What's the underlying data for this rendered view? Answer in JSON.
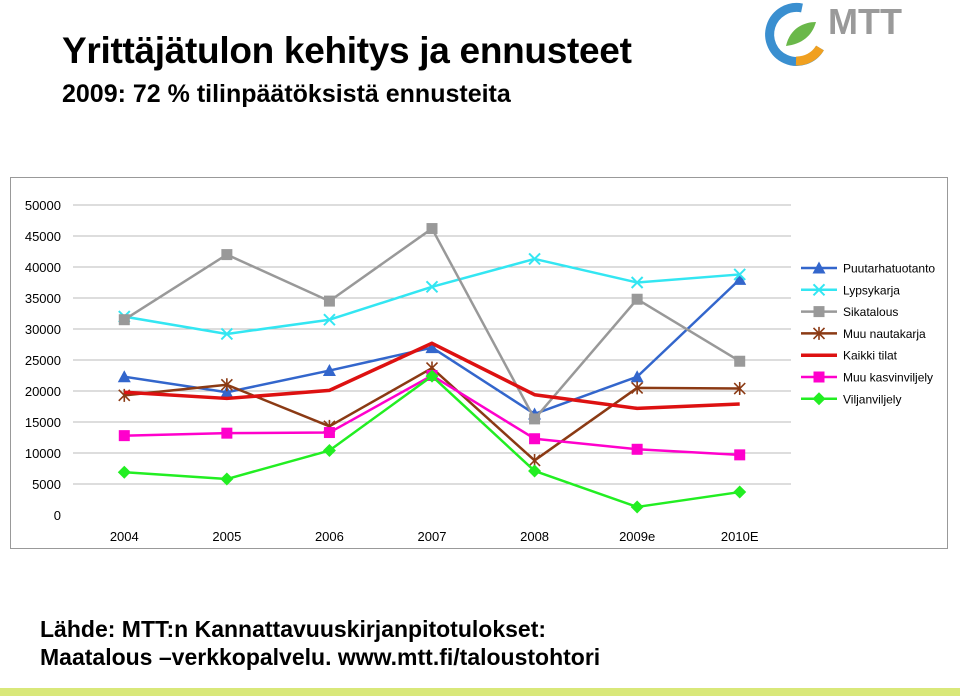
{
  "header": {
    "title": "Yrittäjätulon kehitys ja ennusteet",
    "subtitle": "2009: 72 % tilinpäätöksistä ennusteita"
  },
  "logo": {
    "text": "MTT",
    "colors": [
      "#3a8fd0",
      "#f0a020",
      "#6ab84a",
      "#9a9a9a"
    ]
  },
  "source": {
    "line1": "Lähde: MTT:n Kannattavuuskirjanpitotulokset:",
    "line2": "Maatalous –verkkopalvelu. www.mtt.fi/taloustohtori"
  },
  "chart_data": {
    "type": "line",
    "categories": [
      "2004",
      "2005",
      "2006",
      "2007",
      "2008",
      "2009e",
      "2010E"
    ],
    "ylim": [
      0,
      50000
    ],
    "yticks": [
      0,
      5000,
      10000,
      15000,
      20000,
      25000,
      30000,
      35000,
      40000,
      45000,
      50000
    ],
    "grid": true,
    "legend_position": "right",
    "series": [
      {
        "name": "Puutarhatuotanto",
        "color": "#3366cc",
        "marker": "triangle",
        "values": [
          22300,
          19800,
          23300,
          27000,
          16300,
          22300,
          38000
        ]
      },
      {
        "name": "Lypsykarja",
        "color": "#33e6f2",
        "marker": "x",
        "values": [
          32000,
          29200,
          31500,
          36800,
          41300,
          37500,
          38800
        ]
      },
      {
        "name": "Sikatalous",
        "color": "#999999",
        "marker": "square",
        "values": [
          31500,
          42000,
          34500,
          46200,
          15500,
          34800,
          24800
        ]
      },
      {
        "name": "Muu nautakarja",
        "color": "#8b3a14",
        "marker": "star",
        "values": [
          19300,
          21000,
          14300,
          23700,
          8800,
          20500,
          20400
        ]
      },
      {
        "name": "Kaikki tilat",
        "color": "#dd1111",
        "marker": "none",
        "values": [
          19800,
          18800,
          20100,
          27700,
          19400,
          17200,
          17900
        ]
      },
      {
        "name": "Muu kasvinviljely",
        "color": "#ff00cc",
        "marker": "square",
        "values": [
          12800,
          13200,
          13300,
          22500,
          12300,
          10600,
          9700
        ]
      },
      {
        "name": "Viljanviljely",
        "color": "#22ee22",
        "marker": "diamond",
        "values": [
          6900,
          5800,
          10400,
          22400,
          7100,
          1300,
          3700
        ]
      }
    ]
  }
}
